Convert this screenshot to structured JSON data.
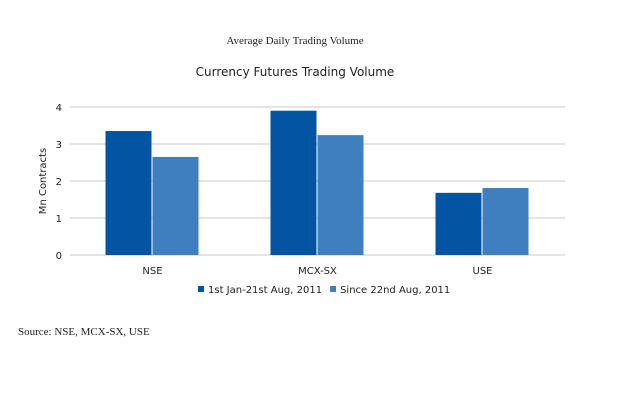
{
  "chart_data": {
    "type": "bar",
    "supertitle": "Average Daily Trading Volume",
    "title": "Currency Futures Trading Volume",
    "xlabel": "",
    "ylabel": "Mn Contracts",
    "ylim": [
      0,
      4
    ],
    "yticks": [
      "0",
      "1",
      "2",
      "3",
      "4"
    ],
    "categories": [
      "NSE",
      "MCX-SX",
      "USE"
    ],
    "series": [
      {
        "name": "1st Jan-21st Aug, 2011",
        "color": "#0355a3",
        "values": [
          3.35,
          3.9,
          1.68
        ]
      },
      {
        "name": "Since 22nd Aug, 2011",
        "color": "#3f7fbf",
        "values": [
          2.65,
          3.24,
          1.81
        ]
      }
    ],
    "grid": true,
    "legend": "bottom",
    "source": "Source: NSE, MCX-SX, USE"
  }
}
